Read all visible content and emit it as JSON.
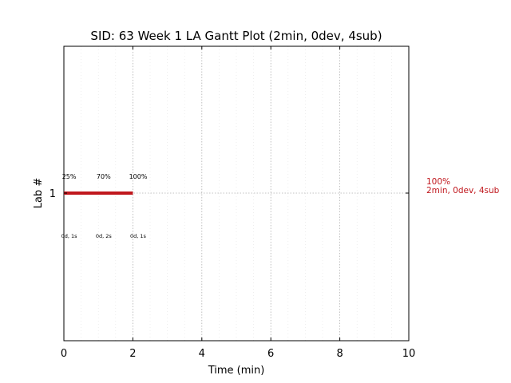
{
  "chart_data": {
    "type": "gantt",
    "title": "SID: 63 Week 1 LA Gantt Plot (2min, 0dev, 4sub)",
    "xlabel": "Time (min)",
    "ylabel": "Lab #",
    "xlim": [
      0,
      10
    ],
    "xticks": [
      0,
      2,
      4,
      6,
      8,
      10
    ],
    "minor_gridlines": [
      0.5,
      1,
      1.5,
      2.5,
      3,
      3.5,
      4.5,
      5,
      5.5,
      6.5,
      7,
      7.5,
      8.5,
      9,
      9.5
    ],
    "grid": true,
    "y_categories": [
      "1"
    ],
    "bar": {
      "lab": "1",
      "start": 0,
      "end": 2
    },
    "percent_labels": [
      {
        "x": 0.5,
        "text": "25%"
      },
      {
        "x": 1.5,
        "text": "70%"
      },
      {
        "x": 2.5,
        "text": "100%"
      }
    ],
    "duration_labels": [
      {
        "x": 0.5,
        "text": "0d, 1s"
      },
      {
        "x": 1.5,
        "text": "0d, 2s"
      },
      {
        "x": 2.5,
        "text": "0d, 1s"
      }
    ],
    "side_annotation": {
      "line1": "100%",
      "line2": "2min, 0dev, 4sub"
    },
    "colors": {
      "bar": "#c0171d",
      "annotation": "#c0171d",
      "grid": "#b0b0b0"
    }
  }
}
